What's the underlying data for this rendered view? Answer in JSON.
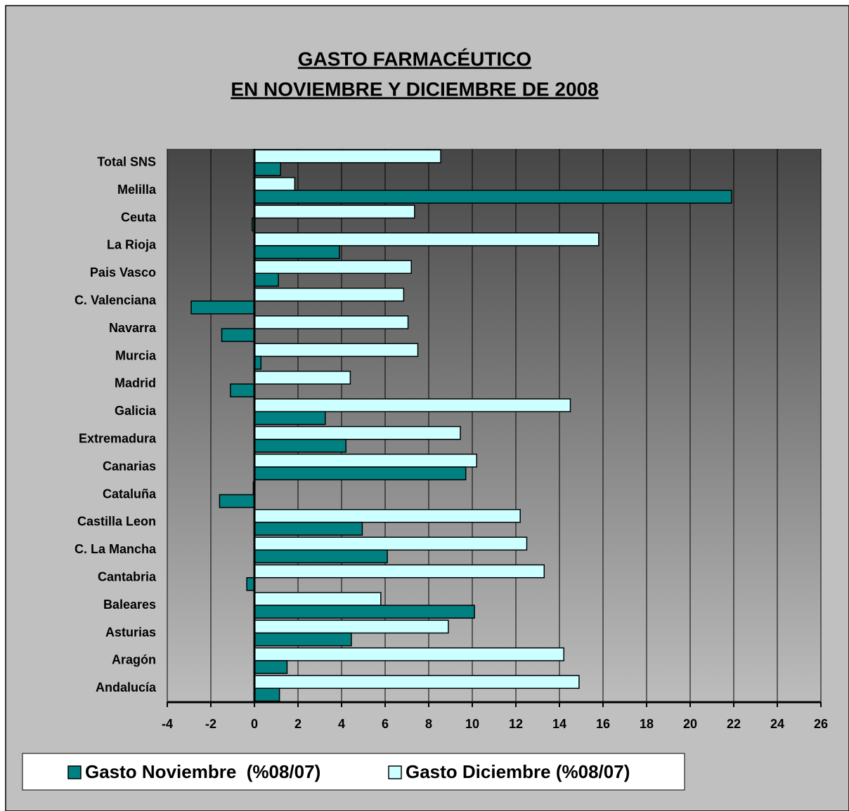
{
  "chart_data": {
    "type": "hbar",
    "title": "GASTO FARMACÉUTICO",
    "subtitle": "EN NOVIEMBRE Y DICIEMBRE DE 2008",
    "categories": [
      "Total SNS",
      "Melilla",
      "Ceuta",
      "La Rioja",
      "Pais Vasco",
      "C. Valenciana",
      "Navarra",
      "Murcia",
      "Madrid",
      "Galicia",
      "Extremadura",
      "Canarias",
      "Cataluña",
      "Castilla Leon",
      "C. La Mancha",
      "Cantabria",
      "Baleares",
      "Asturias",
      "Aragón",
      "Andalucía"
    ],
    "series": [
      {
        "name": "Gasto Noviembre  (%08/07)",
        "color": "#008080",
        "values": [
          1.2,
          21.9,
          -0.1,
          3.9,
          1.1,
          -2.9,
          -1.5,
          0.3,
          -1.1,
          3.25,
          4.2,
          9.7,
          -1.6,
          4.95,
          6.1,
          -0.35,
          10.1,
          4.45,
          1.5,
          1.15
        ]
      },
      {
        "name": "Gasto Diciembre (%08/07)",
        "color": "#ccffff",
        "values": [
          8.55,
          1.85,
          7.35,
          15.8,
          7.2,
          6.85,
          7.05,
          7.5,
          4.4,
          14.5,
          9.45,
          10.2,
          -0.05,
          12.2,
          12.5,
          13.3,
          5.8,
          8.9,
          14.2,
          14.9
        ]
      }
    ],
    "xlim": [
      -4,
      26
    ],
    "xticks": [
      -4,
      -2,
      0,
      2,
      4,
      6,
      8,
      10,
      12,
      14,
      16,
      18,
      20,
      22,
      24,
      26
    ],
    "grid": true
  }
}
